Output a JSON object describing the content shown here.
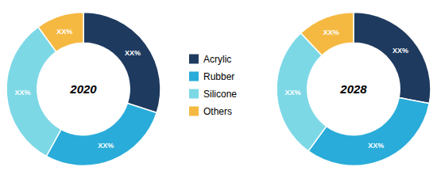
{
  "chart_data": {
    "type": "donut",
    "categories": [
      "Acrylic",
      "Rubber",
      "Silicone",
      "Others"
    ],
    "colors": [
      "#1e3a5f",
      "#29acd9",
      "#7dd8e6",
      "#f5b942"
    ],
    "legend": "center",
    "series": [
      {
        "name": "2020",
        "values": [
          30,
          28,
          32,
          10
        ],
        "value_labels": [
          "XX%",
          "XX%",
          "XX%",
          "XX%"
        ]
      },
      {
        "name": "2028",
        "values": [
          28,
          32,
          28,
          12
        ],
        "value_labels": [
          "XX%",
          "XX%",
          "XX%",
          "XX%"
        ]
      }
    ]
  }
}
